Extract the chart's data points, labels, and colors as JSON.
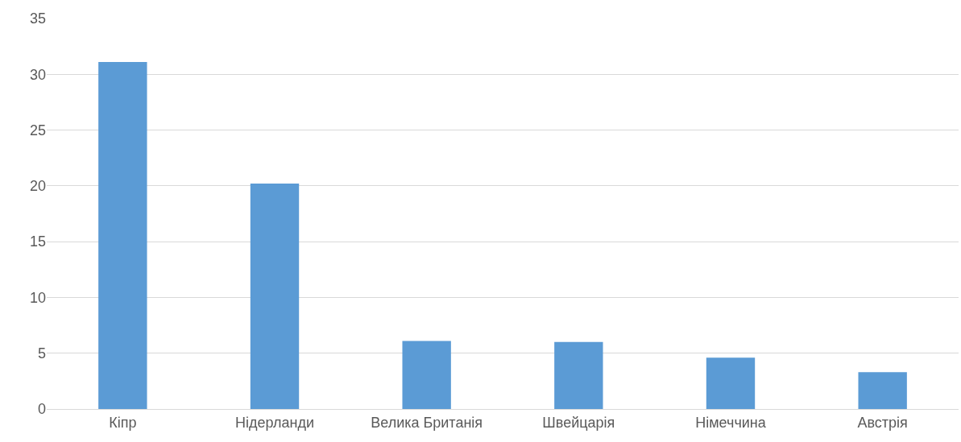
{
  "chart_data": {
    "type": "bar",
    "categories": [
      "Кіпр",
      "Нідерланди",
      "Велика Британія",
      "Швейцарія",
      "Німеччина",
      "Австрія"
    ],
    "values": [
      31.1,
      20.2,
      6.1,
      6.0,
      4.6,
      3.3
    ],
    "color": "#5b9bd5",
    "ylim": [
      0,
      35
    ],
    "yticks": [
      0,
      5,
      10,
      15,
      20,
      25,
      30,
      35
    ],
    "grid": "y"
  }
}
